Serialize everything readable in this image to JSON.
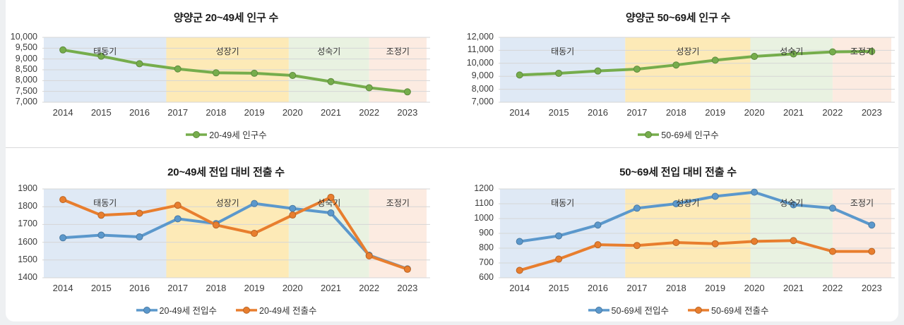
{
  "page": {
    "region_name": "양양군",
    "years": [
      "2014",
      "2015",
      "2016",
      "2017",
      "2018",
      "2019",
      "2020",
      "2021",
      "2022",
      "2023"
    ]
  },
  "phases": {
    "bands": [
      {
        "label": "태동기",
        "color": "#dfe9f5",
        "start": 0.0,
        "end": 0.32
      },
      {
        "label": "성장기",
        "color": "#fdeab7",
        "start": 0.32,
        "end": 0.64
      },
      {
        "label": "성숙기",
        "color": "#e9f2e1",
        "start": 0.64,
        "end": 0.85
      },
      {
        "label": "조정기",
        "color": "#fcebe1",
        "start": 0.85,
        "end": 1.0
      }
    ]
  },
  "chart_data": [
    {
      "type": "line",
      "title": "양양군 20~49세 인구 수",
      "categories": [
        "2014",
        "2015",
        "2016",
        "2017",
        "2018",
        "2019",
        "2020",
        "2021",
        "2022",
        "2023"
      ],
      "series": [
        {
          "name": "20-49세 인구수",
          "color": "#76ad4c",
          "values": [
            9420,
            9130,
            8780,
            8540,
            8360,
            8340,
            8240,
            7955,
            7670,
            7480
          ]
        }
      ],
      "ylim": [
        7000,
        10000
      ],
      "yticks": [
        "10,000",
        "9,500",
        "9,000",
        "8,500",
        "8,000",
        "7,500",
        "7,000"
      ],
      "grid": true,
      "legend_position": "bottom"
    },
    {
      "type": "line",
      "title": "양양군 50~69세 인구 수",
      "categories": [
        "2014",
        "2015",
        "2016",
        "2017",
        "2018",
        "2019",
        "2020",
        "2021",
        "2022",
        "2023"
      ],
      "series": [
        {
          "name": "50-69세 인구수",
          "color": "#76ad4c",
          "values": [
            9100,
            9230,
            9410,
            9550,
            9870,
            10240,
            10530,
            10720,
            10880,
            10920
          ]
        }
      ],
      "ylim": [
        7000,
        12000
      ],
      "yticks": [
        "12,000",
        "11,000",
        "10,000",
        "9,000",
        "8,000",
        "7,000"
      ],
      "grid": true,
      "legend_position": "bottom"
    },
    {
      "type": "line",
      "title": "20~49세 전입 대비 전출 수",
      "categories": [
        "2014",
        "2015",
        "2016",
        "2017",
        "2018",
        "2019",
        "2020",
        "2021",
        "2022",
        "2023"
      ],
      "series": [
        {
          "name": "20-49세 전입수",
          "color": "#5b98cc",
          "values": [
            1625,
            1640,
            1630,
            1732,
            1705,
            1818,
            1790,
            1765,
            1527,
            1450
          ]
        },
        {
          "name": "20-49세 전출수",
          "color": "#e87e2e",
          "values": [
            1840,
            1752,
            1763,
            1808,
            1697,
            1650,
            1753,
            1853,
            1523,
            1448
          ]
        }
      ],
      "ylim": [
        1400,
        1900
      ],
      "yticks": [
        "1900",
        "1800",
        "1700",
        "1600",
        "1500",
        "1400"
      ],
      "grid": true,
      "legend_position": "bottom"
    },
    {
      "type": "line",
      "title": "50~69세 전입 대비 전출 수",
      "categories": [
        "2014",
        "2015",
        "2016",
        "2017",
        "2018",
        "2019",
        "2020",
        "2021",
        "2022",
        "2023"
      ],
      "series": [
        {
          "name": "50-69세 전입수",
          "color": "#5b98cc",
          "values": [
            845,
            883,
            956,
            1070,
            1100,
            1150,
            1178,
            1093,
            1070,
            956
          ]
        },
        {
          "name": "50-69세 전출수",
          "color": "#e87e2e",
          "values": [
            650,
            726,
            823,
            818,
            838,
            830,
            846,
            851,
            778,
            778
          ]
        }
      ],
      "ylim": [
        600,
        1200
      ],
      "yticks": [
        "1200",
        "1100",
        "1000",
        "900",
        "800",
        "700",
        "600"
      ],
      "grid": true,
      "legend_position": "bottom"
    }
  ]
}
